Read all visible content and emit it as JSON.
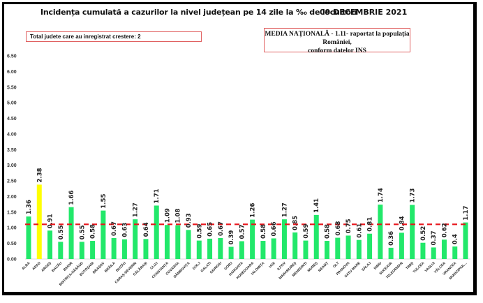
{
  "header": {
    "title": "Incidența cumulată a cazurilor la nivel județean pe 14 zile la ‰ de locuitori",
    "date": "09 DECEMBRIE 2021"
  },
  "info_boxes": {
    "counties_increase": "Total judete care au inregistrat crestere: 2",
    "national_average_line1": "MEDIA NAȚIONALĂ - 1.11-  raportat la populația României,",
    "national_average_line2": "conform datelor INS"
  },
  "colors": {
    "bar_default": "#22e86a",
    "bar_highlight": "#ffff00",
    "average_line": "#e8151b",
    "box_border": "#e06060"
  },
  "chart_data": {
    "type": "bar",
    "title": "Incidența cumulată a cazurilor la nivel județean pe 14 zile la ‰ de locuitori",
    "xlabel": "",
    "ylabel": "",
    "ylim": [
      0,
      6.5
    ],
    "yticks": [
      "0.00",
      "0.50",
      "1.00",
      "1.50",
      "2.00",
      "2.50",
      "3.00",
      "3.50",
      "4.00",
      "4.50",
      "5.00",
      "5.50",
      "6.00",
      "6.50"
    ],
    "grid": false,
    "reference_line": {
      "label": "Media națională",
      "value": 1.11,
      "style": "dashed"
    },
    "categories": [
      "ALBA",
      "ARAD",
      "ARGEȘ",
      "BACĂU",
      "BIHOR",
      "BISTRIȚA-NĂSĂUD",
      "BOTOȘANI",
      "BRAȘOV",
      "BRĂILA",
      "BUZĂU",
      "CARAȘ-SEVERIN",
      "CĂLĂRAȘI",
      "CLUJ",
      "CONSTANȚA",
      "COVASNA",
      "DÂMBOVIȚA",
      "DOLJ",
      "GALAȚI",
      "GIURGIU",
      "GORJ",
      "HARGHITA",
      "HUNEDOARA",
      "IALOMIȚA",
      "IAȘI",
      "ILFOV",
      "MARAMUREȘ",
      "MEHEDINȚI",
      "MUREȘ",
      "NEAMȚ",
      "OLT",
      "PRAHOVA",
      "SATU MARE",
      "SĂLAJ",
      "SIBIU",
      "SUCEAVA",
      "TELEORMAN",
      "TIMIȘ",
      "TULCEA",
      "VASLUI",
      "VÂLCEA",
      "VRANCEA",
      "MUNICIPIUL..."
    ],
    "values": [
      1.36,
      2.38,
      0.91,
      0.55,
      1.66,
      0.55,
      0.58,
      1.55,
      0.67,
      0.63,
      1.27,
      0.64,
      1.71,
      1.09,
      1.08,
      0.93,
      0.59,
      0.65,
      0.67,
      0.39,
      0.57,
      1.26,
      0.58,
      0.66,
      1.27,
      0.85,
      0.59,
      1.41,
      0.58,
      0.68,
      0.75,
      0.61,
      0.81,
      1.74,
      0.36,
      0.84,
      1.73,
      0.52,
      0.37,
      0.62,
      0.4,
      1.17
    ],
    "value_labels": [
      "1.36",
      "2.38",
      "0.91",
      "0.55",
      "1.66",
      "0.55",
      "0.58",
      "1.55",
      "0.67",
      "0.63",
      "1.27",
      "0.64",
      "1.71",
      "1.09",
      "1.08",
      "0.93",
      "0.59",
      "0.65",
      "0.67",
      "0.39",
      "0.57",
      "1.26",
      "0.58",
      "0.66",
      "1.27",
      "0.85",
      "0.59",
      "1.41",
      "0.58",
      "0.68",
      "0.75",
      "0.61",
      "0.81",
      "1.74",
      "0.36",
      "0.84",
      "1.73",
      "0.52",
      "0.37",
      "0.62",
      "0.4",
      "1.17"
    ],
    "highlighted": [
      "ARAD"
    ]
  }
}
